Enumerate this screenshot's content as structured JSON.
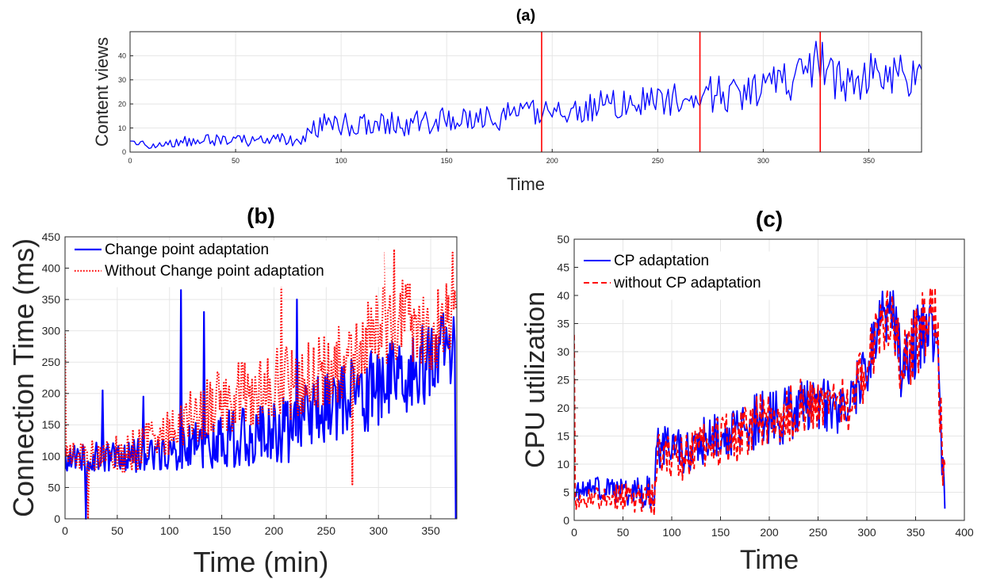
{
  "colors": {
    "blue": "#0000ff",
    "red": "#ff0000",
    "axis": "#262626",
    "grid": "#e6e6e6"
  },
  "chart_data": [
    {
      "id": "a",
      "type": "line",
      "title": "(a)",
      "xlabel": "Time",
      "ylabel": "Content views",
      "xlim": [
        0,
        375
      ],
      "ylim": [
        0,
        50
      ],
      "xticks": [
        0,
        50,
        100,
        150,
        200,
        250,
        300,
        350
      ],
      "yticks": [
        0,
        10,
        20,
        30,
        40
      ],
      "grid": true,
      "change_points": [
        195,
        270,
        327
      ],
      "series": [
        {
          "style": "solid",
          "color": "#0000ff",
          "trend": [
            [
              0,
              3
            ],
            [
              20,
              4
            ],
            [
              40,
              5
            ],
            [
              60,
              5
            ],
            [
              80,
              5
            ],
            [
              90,
              11
            ],
            [
              110,
              12
            ],
            [
              130,
              12
            ],
            [
              150,
              13
            ],
            [
              170,
              14
            ],
            [
              190,
              16
            ],
            [
              210,
              18
            ],
            [
              230,
              20
            ],
            [
              250,
              21
            ],
            [
              270,
              24
            ],
            [
              290,
              24
            ],
            [
              310,
              29
            ],
            [
              320,
              33
            ],
            [
              327,
              38
            ],
            [
              335,
              31
            ],
            [
              345,
              30
            ],
            [
              360,
              34
            ],
            [
              375,
              33
            ]
          ],
          "amp": [
            [
              0,
              2
            ],
            [
              80,
              3
            ],
            [
              90,
              5
            ],
            [
              190,
              6
            ],
            [
              250,
              7
            ],
            [
              300,
              8
            ],
            [
              330,
              10
            ],
            [
              375,
              11
            ]
          ]
        }
      ]
    },
    {
      "id": "b",
      "type": "line",
      "title": "(b)",
      "xlabel": "Time (min)",
      "ylabel": "Connection Time (ms)",
      "xlim": [
        0,
        375
      ],
      "ylim": [
        0,
        450
      ],
      "xticks": [
        0,
        50,
        100,
        150,
        200,
        250,
        300,
        350
      ],
      "yticks": [
        0,
        50,
        100,
        150,
        200,
        250,
        300,
        350,
        400,
        450
      ],
      "grid": true,
      "legend": "top-left",
      "series": [
        {
          "name": "Change point adaptation",
          "style": "solid",
          "color": "#0000ff",
          "trend": [
            [
              0,
              95
            ],
            [
              30,
              100
            ],
            [
              60,
              100
            ],
            [
              90,
              105
            ],
            [
              120,
              115
            ],
            [
              150,
              125
            ],
            [
              180,
              135
            ],
            [
              200,
              140
            ],
            [
              220,
              145
            ],
            [
              240,
              170
            ],
            [
              260,
              185
            ],
            [
              280,
              195
            ],
            [
              300,
              210
            ],
            [
              320,
              230
            ],
            [
              340,
              245
            ],
            [
              360,
              260
            ],
            [
              374,
              280
            ]
          ],
          "amp": [
            [
              0,
              20
            ],
            [
              90,
              30
            ],
            [
              150,
              45
            ],
            [
              200,
              55
            ],
            [
              250,
              60
            ],
            [
              300,
              65
            ],
            [
              374,
              70
            ]
          ],
          "spikes": [
            [
              20,
              0
            ],
            [
              36,
              205
            ],
            [
              75,
              195
            ],
            [
              111,
              365
            ],
            [
              133,
              330
            ],
            [
              222,
              350
            ],
            [
              262,
              220
            ],
            [
              374,
              0
            ]
          ]
        },
        {
          "name": "Without Change point adaptation",
          "style": "dotted",
          "color": "#ff0000",
          "trend": [
            [
              0,
              100
            ],
            [
              30,
              100
            ],
            [
              60,
              105
            ],
            [
              90,
              130
            ],
            [
              120,
              165
            ],
            [
              150,
              185
            ],
            [
              180,
              205
            ],
            [
              200,
              215
            ],
            [
              220,
              215
            ],
            [
              240,
              230
            ],
            [
              260,
              245
            ],
            [
              280,
              260
            ],
            [
              300,
              305
            ],
            [
              320,
              320
            ],
            [
              340,
              300
            ],
            [
              360,
              305
            ],
            [
              374,
              320
            ]
          ],
          "amp": [
            [
              0,
              20
            ],
            [
              90,
              40
            ],
            [
              150,
              55
            ],
            [
              200,
              60
            ],
            [
              250,
              60
            ],
            [
              300,
              65
            ],
            [
              374,
              70
            ]
          ],
          "spikes": [
            [
              0,
              295
            ],
            [
              22,
              0
            ],
            [
              207,
              380
            ],
            [
              275,
              55
            ],
            [
              305,
              425
            ],
            [
              315,
              430
            ],
            [
              371,
              425
            ]
          ]
        }
      ]
    },
    {
      "id": "c",
      "type": "line",
      "title": "(c)",
      "xlabel": "Time",
      "ylabel": "CPU utilization",
      "xlim": [
        0,
        400
      ],
      "ylim": [
        0,
        50
      ],
      "xticks": [
        0,
        50,
        100,
        150,
        200,
        250,
        300,
        350,
        400
      ],
      "yticks": [
        0,
        5,
        10,
        15,
        20,
        25,
        30,
        35,
        40,
        45,
        50
      ],
      "grid": true,
      "legend": "top-left",
      "series": [
        {
          "name": "CP adaptation",
          "style": "solid",
          "color": "#0000ff",
          "trend": [
            [
              0,
              5
            ],
            [
              20,
              6
            ],
            [
              40,
              5
            ],
            [
              70,
              5
            ],
            [
              82,
              5
            ],
            [
              85,
              13
            ],
            [
              110,
              12
            ],
            [
              130,
              14
            ],
            [
              150,
              15
            ],
            [
              170,
              16
            ],
            [
              190,
              18
            ],
            [
              210,
              18
            ],
            [
              230,
              20
            ],
            [
              250,
              21
            ],
            [
              270,
              20
            ],
            [
              280,
              20
            ],
            [
              290,
              24
            ],
            [
              300,
              27
            ],
            [
              315,
              36
            ],
            [
              325,
              38
            ],
            [
              335,
              27
            ],
            [
              345,
              30
            ],
            [
              360,
              35
            ],
            [
              372,
              35
            ],
            [
              378,
              7
            ],
            [
              380,
              2.5
            ]
          ],
          "amp": [
            [
              0,
              1.5
            ],
            [
              80,
              3
            ],
            [
              90,
              4
            ],
            [
              200,
              5
            ],
            [
              300,
              5
            ],
            [
              330,
              6
            ],
            [
              375,
              7
            ]
          ]
        },
        {
          "name": "without CP adaptation",
          "style": "dashed",
          "color": "#ff0000",
          "trend": [
            [
              0,
              4
            ],
            [
              20,
              4
            ],
            [
              40,
              4
            ],
            [
              70,
              4
            ],
            [
              82,
              4
            ],
            [
              85,
              12
            ],
            [
              110,
              11
            ],
            [
              130,
              13
            ],
            [
              150,
              14
            ],
            [
              170,
              15
            ],
            [
              190,
              18
            ],
            [
              210,
              18
            ],
            [
              230,
              20
            ],
            [
              250,
              21
            ],
            [
              270,
              21
            ],
            [
              280,
              20
            ],
            [
              290,
              24
            ],
            [
              300,
              27
            ],
            [
              315,
              35
            ],
            [
              325,
              37
            ],
            [
              335,
              28
            ],
            [
              345,
              30
            ],
            [
              360,
              35
            ],
            [
              372,
              36
            ],
            [
              378,
              8
            ],
            [
              380,
              3
            ]
          ],
          "amp": [
            [
              0,
              1.5
            ],
            [
              80,
              3
            ],
            [
              90,
              4
            ],
            [
              200,
              5
            ],
            [
              300,
              5
            ],
            [
              330,
              6
            ],
            [
              375,
              7
            ]
          ],
          "spikes": [
            [
              0,
              33
            ],
            [
              2,
              2
            ]
          ]
        }
      ]
    }
  ]
}
